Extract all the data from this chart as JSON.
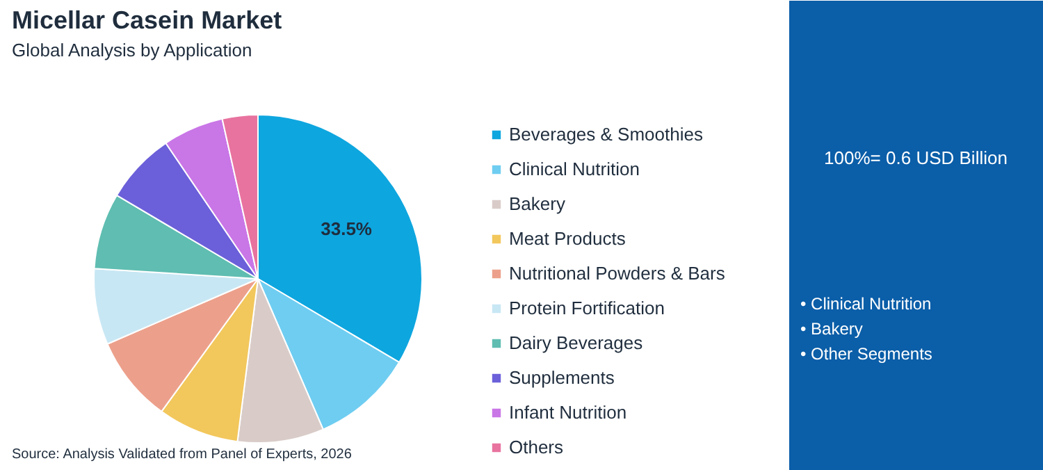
{
  "chart_data": {
    "type": "pie",
    "title": "Micellar Casein Market",
    "subtitle": "Global Analysis by Application",
    "categories": [
      "Beverages & Smoothies",
      "Clinical Nutrition",
      "Bakery",
      "Meat Products",
      "Nutritional Powders & Bars",
      "Protein Fortification",
      "Dairy Beverages",
      "Supplements",
      "Infant Nutrition",
      "Others"
    ],
    "values": [
      33.5,
      10,
      8.5,
      8,
      8.5,
      7.5,
      7.5,
      7,
      6,
      3.5
    ],
    "colors": [
      "#0ea6df",
      "#6fcdf1",
      "#d9ccc8",
      "#f2c75c",
      "#eca08b",
      "#c8e7f4",
      "#5fbdb1",
      "#6b60d9",
      "#c976e7",
      "#e8739f"
    ],
    "value_labels": [
      "33.5%",
      null,
      null,
      null,
      null,
      null,
      null,
      null,
      null,
      null
    ],
    "legend": "right",
    "annotations": [
      "Source: Analysis Validated from Panel of Experts, 2026",
      "100%= 0.6 USD Billion",
      "• Clinical Nutrition",
      "• Bakery",
      "• Other Segments"
    ]
  }
}
